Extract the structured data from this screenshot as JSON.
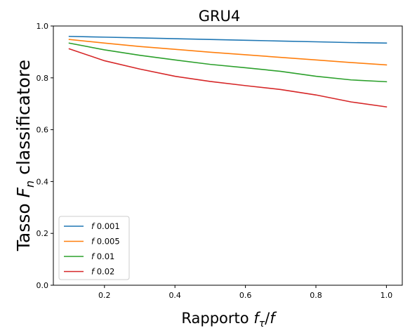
{
  "chart_data": {
    "type": "line",
    "title": "GRU4",
    "xlabel": {
      "prefix": "Rapporto ",
      "var1": "f",
      "sub1": "τ",
      "sep": "/",
      "var2": "f"
    },
    "ylabel": {
      "prefix": "Tasso ",
      "var": "F",
      "sub": "n",
      "suffix": " classificatore"
    },
    "xlim": [
      0.055,
      1.045
    ],
    "ylim": [
      0.0,
      1.0
    ],
    "xticks": [
      0.2,
      0.4,
      0.6,
      0.8,
      1.0
    ],
    "xtick_labels": [
      "0.2",
      "0.4",
      "0.6",
      "0.8",
      "1.0"
    ],
    "yticks": [
      0.0,
      0.2,
      0.4,
      0.6,
      0.8,
      1.0
    ],
    "ytick_labels": [
      "0.0",
      "0.2",
      "0.4",
      "0.6",
      "0.8",
      "1.0"
    ],
    "x": [
      0.1,
      0.2,
      0.3,
      0.4,
      0.5,
      0.6,
      0.7,
      0.8,
      0.9,
      1.0
    ],
    "series": [
      {
        "name": "0.001",
        "legend_var": "f",
        "color": "#1f77b4",
        "values": [
          0.96,
          0.957,
          0.954,
          0.951,
          0.948,
          0.945,
          0.942,
          0.939,
          0.936,
          0.934
        ]
      },
      {
        "name": "0.005",
        "legend_var": "f",
        "color": "#ff7f0e",
        "values": [
          0.948,
          0.934,
          0.921,
          0.91,
          0.899,
          0.889,
          0.879,
          0.869,
          0.859,
          0.85
        ]
      },
      {
        "name": "0.01",
        "legend_var": "f",
        "color": "#2ca02c",
        "values": [
          0.934,
          0.908,
          0.887,
          0.869,
          0.852,
          0.839,
          0.825,
          0.806,
          0.792,
          0.785
        ]
      },
      {
        "name": "0.02",
        "legend_var": "f",
        "color": "#d62728",
        "values": [
          0.912,
          0.866,
          0.834,
          0.806,
          0.786,
          0.77,
          0.755,
          0.734,
          0.707,
          0.688
        ]
      }
    ],
    "grid": false,
    "legend_position": "lower-left"
  }
}
